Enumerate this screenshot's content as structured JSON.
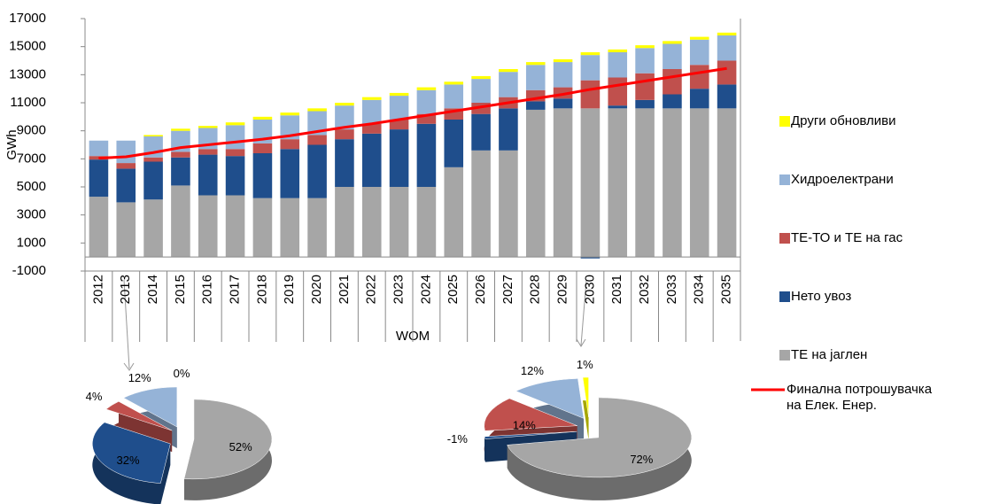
{
  "chart_data": [
    {
      "type": "bar",
      "stacked": true,
      "y_label": "GWh",
      "x_label": "WOM",
      "categories": [
        "2012",
        "2013",
        "2014",
        "2015",
        "2016",
        "2017",
        "2018",
        "2019",
        "2020",
        "2021",
        "2022",
        "2023",
        "2024",
        "2025",
        "2026",
        "2027",
        "2028",
        "2029",
        "2030",
        "2031",
        "2032",
        "2033",
        "2034",
        "2035"
      ],
      "ylim": [
        -1000,
        17000
      ],
      "yticks": [
        -1000,
        1000,
        3000,
        5000,
        7000,
        9000,
        11000,
        13000,
        15000,
        17000
      ],
      "grid": false,
      "legend": "right",
      "series": [
        {
          "name": "ТЕ на јаглен",
          "color": "#a6a6a6",
          "values": [
            4300,
            3900,
            4100,
            5100,
            4400,
            4400,
            4200,
            4200,
            4200,
            5000,
            5000,
            5000,
            5000,
            6400,
            7600,
            7600,
            10500,
            10600,
            10600,
            10600,
            10600,
            10600,
            10600,
            10600
          ]
        },
        {
          "name": "Нето увоз",
          "color": "#1f4e8c",
          "values": [
            2650,
            2400,
            2700,
            2000,
            2900,
            2800,
            3200,
            3500,
            3800,
            3400,
            3800,
            4100,
            4500,
            3400,
            2600,
            3000,
            600,
            700,
            -100,
            200,
            600,
            1000,
            1400,
            1700
          ]
        },
        {
          "name": "ТЕ-ТО и ТЕ на гас",
          "color": "#c0504d",
          "values": [
            250,
            400,
            300,
            400,
            400,
            500,
            700,
            700,
            700,
            700,
            700,
            700,
            700,
            800,
            800,
            800,
            800,
            800,
            2000,
            2000,
            1900,
            1800,
            1700,
            1700
          ]
        },
        {
          "name": "Хидроелектрани",
          "color": "#95b3d7",
          "values": [
            1100,
            1600,
            1500,
            1500,
            1500,
            1700,
            1700,
            1700,
            1700,
            1700,
            1700,
            1700,
            1700,
            1700,
            1700,
            1800,
            1800,
            1800,
            1800,
            1800,
            1800,
            1800,
            1800,
            1800
          ]
        },
        {
          "name": "Други обновливи",
          "color": "#ffff00",
          "values": [
            0,
            0,
            100,
            150,
            150,
            200,
            200,
            200,
            200,
            200,
            200,
            200,
            200,
            200,
            200,
            200,
            200,
            200,
            200,
            200,
            200,
            200,
            200,
            200
          ]
        },
        {
          "name": "Финална потрошувачка на Елек. Енер.",
          "type": "line",
          "color": "#ff0000",
          "values": [
            7050,
            7150,
            7450,
            7800,
            8000,
            8200,
            8400,
            8650,
            8950,
            9250,
            9500,
            9800,
            10100,
            10400,
            10700,
            11000,
            11300,
            11600,
            11950,
            12250,
            12550,
            12850,
            13150,
            13450
          ]
        }
      ]
    },
    {
      "type": "pie",
      "values": [
        52,
        32,
        4,
        12,
        0
      ],
      "value_labels": [
        "52%",
        "32%",
        "4%",
        "12%",
        "0%"
      ],
      "colors": [
        "#a6a6a6",
        "#1f4e8c",
        "#c0504d",
        "#95b3d7",
        "#ffff00"
      ]
    },
    {
      "type": "pie",
      "values": [
        72,
        -1,
        14,
        12,
        1
      ],
      "value_labels": [
        "72%",
        "-1%",
        "14%",
        "12%",
        "1%"
      ],
      "colors": [
        "#a6a6a6",
        "#1f4e8c",
        "#c0504d",
        "#95b3d7",
        "#ffff00"
      ]
    }
  ]
}
